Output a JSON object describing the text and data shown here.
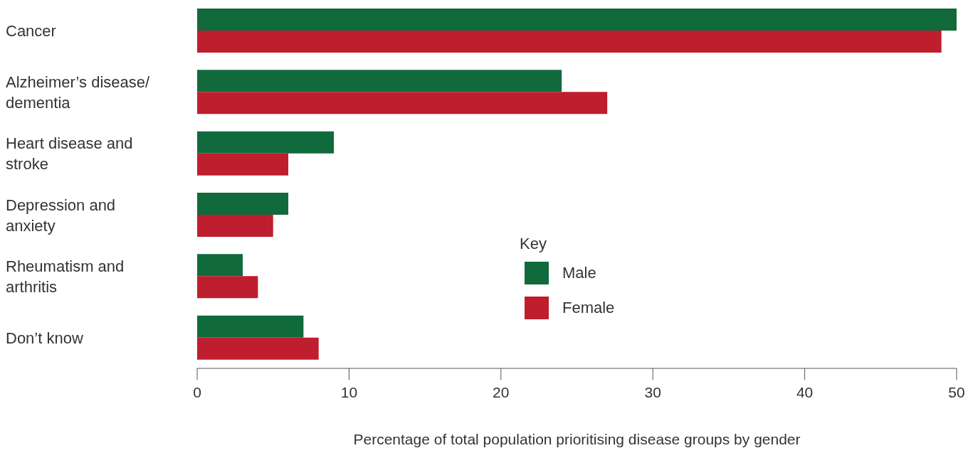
{
  "chart_data": {
    "type": "bar",
    "orientation": "horizontal",
    "categories": [
      "Cancer",
      "Alzheimer’s disease/ dementia",
      "Heart disease and stroke",
      "Depression and anxiety",
      "Rheumatism and arthritis",
      "Don’t know"
    ],
    "series": [
      {
        "name": "Male",
        "color": "#116a3c",
        "values": [
          50,
          24,
          9,
          6,
          3,
          7
        ]
      },
      {
        "name": "Female",
        "color": "#be1e2d",
        "values": [
          49,
          27,
          6,
          5,
          4,
          8
        ]
      }
    ],
    "xlim": [
      0,
      50
    ],
    "xticks": [
      0,
      10,
      20,
      30,
      40,
      50
    ],
    "xlabel": "Percentage of total population prioritising disease groups by gender",
    "legend": "center",
    "legend_title": "Key",
    "grid": false
  }
}
